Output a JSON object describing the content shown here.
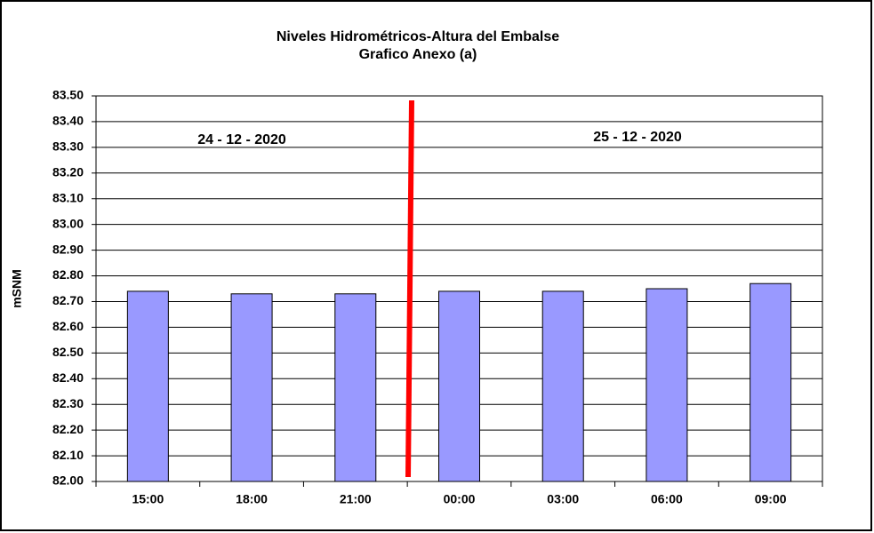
{
  "chart_data": {
    "type": "bar",
    "title": "Niveles Hidrométricos-Altura del Embalse",
    "subtitle": "Grafico Anexo (a)",
    "y_label": "mSNM",
    "annotations": [
      "24 - 12 - 2020",
      "25 - 12 - 2020"
    ],
    "categories": [
      "15:00",
      "18:00",
      "21:00",
      "00:00",
      "03:00",
      "06:00",
      "09:00"
    ],
    "values": [
      82.74,
      82.73,
      82.73,
      82.74,
      82.74,
      82.75,
      82.77
    ],
    "color": "#9999ff",
    "ylim": [
      82.0,
      83.5
    ],
    "yticks": [
      {
        "value": 82.0,
        "label": "82.00"
      },
      {
        "value": 82.1,
        "label": "82.10"
      },
      {
        "value": 82.2,
        "label": "82.20"
      },
      {
        "value": 82.3,
        "label": "82.30"
      },
      {
        "value": 82.4,
        "label": "82.40"
      },
      {
        "value": 82.5,
        "label": "82.50"
      },
      {
        "value": 82.6,
        "label": "82.60"
      },
      {
        "value": 82.7,
        "label": "82.70"
      },
      {
        "value": 82.8,
        "label": "82.80"
      },
      {
        "value": 82.9,
        "label": "82.90"
      },
      {
        "value": 83.0,
        "label": "83.00"
      },
      {
        "value": 83.1,
        "label": "83.10"
      },
      {
        "value": 83.2,
        "label": "83.20"
      },
      {
        "value": 83.3,
        "label": "83.30"
      },
      {
        "value": 83.4,
        "label": "83.40"
      },
      {
        "value": 83.5,
        "label": "83.50"
      }
    ],
    "grid": true
  }
}
